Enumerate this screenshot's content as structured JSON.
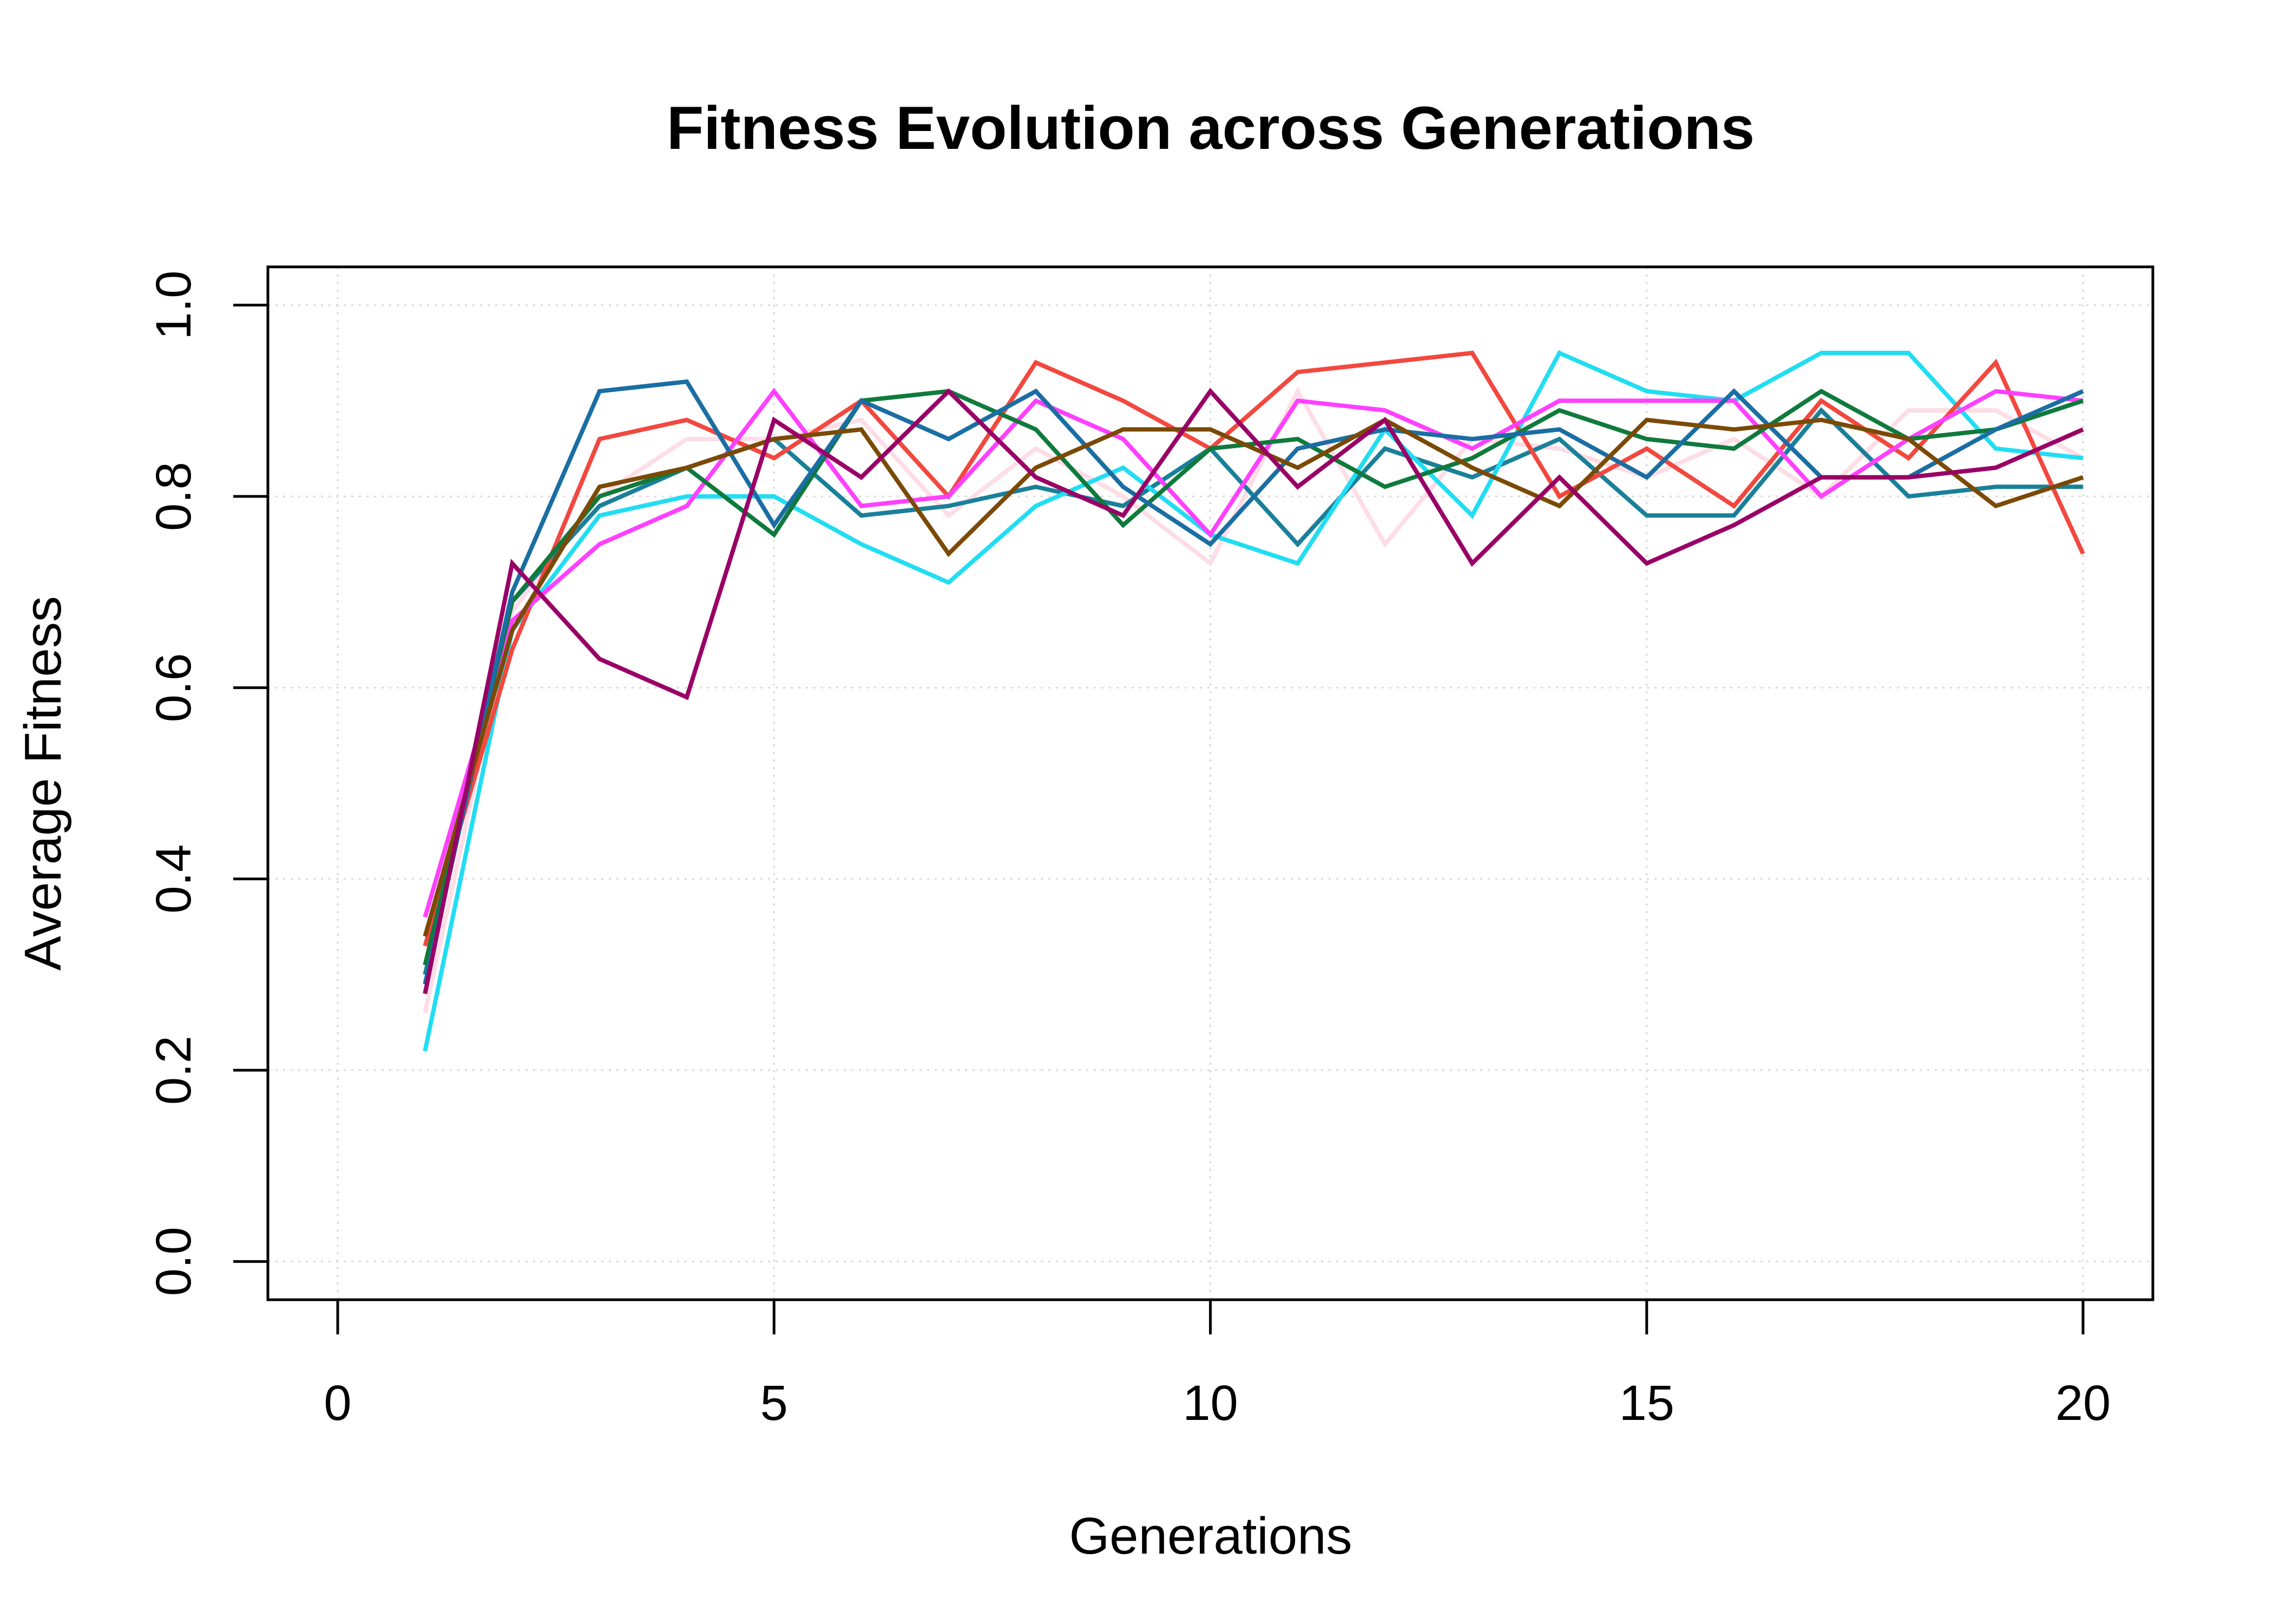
{
  "chart_data": {
    "type": "line",
    "title": "Fitness Evolution across Generations",
    "xlabel": "Generations",
    "ylabel": "Average Fitness",
    "xlim": [
      -0.8,
      20.8
    ],
    "ylim": [
      -0.04,
      1.04
    ],
    "x_ticks": [
      "0",
      "5",
      "10",
      "15",
      "20"
    ],
    "y_ticks": [
      "0.0",
      "0.2",
      "0.4",
      "0.6",
      "0.8",
      "1.0"
    ],
    "grid": true,
    "legend": false,
    "x": [
      1,
      2,
      3,
      4,
      5,
      6,
      7,
      8,
      9,
      10,
      11,
      12,
      13,
      14,
      15,
      16,
      17,
      18,
      19,
      20
    ],
    "series": [
      {
        "color": "#fddde6",
        "values": [
          0.26,
          0.68,
          0.8,
          0.86,
          0.86,
          0.88,
          0.78,
          0.85,
          0.8,
          0.73,
          0.91,
          0.75,
          0.86,
          0.85,
          0.82,
          0.86,
          0.8,
          0.89,
          0.89,
          0.84
        ]
      },
      {
        "color": "#1a8099",
        "values": [
          0.3,
          0.69,
          0.79,
          0.83,
          0.86,
          0.78,
          0.79,
          0.81,
          0.79,
          0.85,
          0.75,
          0.85,
          0.82,
          0.86,
          0.78,
          0.78,
          0.89,
          0.8,
          0.81,
          0.81
        ]
      },
      {
        "color": "#22ddf2",
        "values": [
          0.22,
          0.66,
          0.78,
          0.8,
          0.8,
          0.75,
          0.71,
          0.79,
          0.83,
          0.76,
          0.73,
          0.87,
          0.78,
          0.95,
          0.91,
          0.9,
          0.95,
          0.95,
          0.85,
          0.84
        ]
      },
      {
        "color": "#f2483f",
        "values": [
          0.33,
          0.64,
          0.86,
          0.88,
          0.84,
          0.9,
          0.8,
          0.94,
          0.9,
          0.85,
          0.93,
          0.94,
          0.95,
          0.8,
          0.85,
          0.79,
          0.9,
          0.84,
          0.94,
          0.74
        ]
      },
      {
        "color": "#ff40ff",
        "values": [
          0.36,
          0.67,
          0.75,
          0.79,
          0.91,
          0.79,
          0.8,
          0.9,
          0.86,
          0.76,
          0.9,
          0.89,
          0.85,
          0.9,
          0.9,
          0.9,
          0.8,
          0.86,
          0.91,
          0.9
        ]
      },
      {
        "color": "#0f7a3c",
        "values": [
          0.31,
          0.69,
          0.8,
          0.83,
          0.76,
          0.9,
          0.91,
          0.87,
          0.77,
          0.85,
          0.86,
          0.81,
          0.84,
          0.89,
          0.86,
          0.85,
          0.91,
          0.86,
          0.87,
          0.9
        ]
      },
      {
        "color": "#1a6ea3",
        "values": [
          0.29,
          0.7,
          0.91,
          0.92,
          0.77,
          0.9,
          0.86,
          0.91,
          0.81,
          0.75,
          0.85,
          0.87,
          0.86,
          0.87,
          0.82,
          0.91,
          0.82,
          0.82,
          0.87,
          0.91
        ]
      },
      {
        "color": "#7a4a06",
        "values": [
          0.34,
          0.66,
          0.81,
          0.83,
          0.86,
          0.87,
          0.74,
          0.83,
          0.87,
          0.87,
          0.83,
          0.88,
          0.83,
          0.79,
          0.88,
          0.87,
          0.88,
          0.86,
          0.79,
          0.82
        ]
      },
      {
        "color": "#990066",
        "values": [
          0.28,
          0.73,
          0.63,
          0.59,
          0.88,
          0.82,
          0.91,
          0.82,
          0.78,
          0.91,
          0.81,
          0.88,
          0.73,
          0.82,
          0.73,
          0.77,
          0.82,
          0.82,
          0.83,
          0.87
        ]
      }
    ]
  }
}
